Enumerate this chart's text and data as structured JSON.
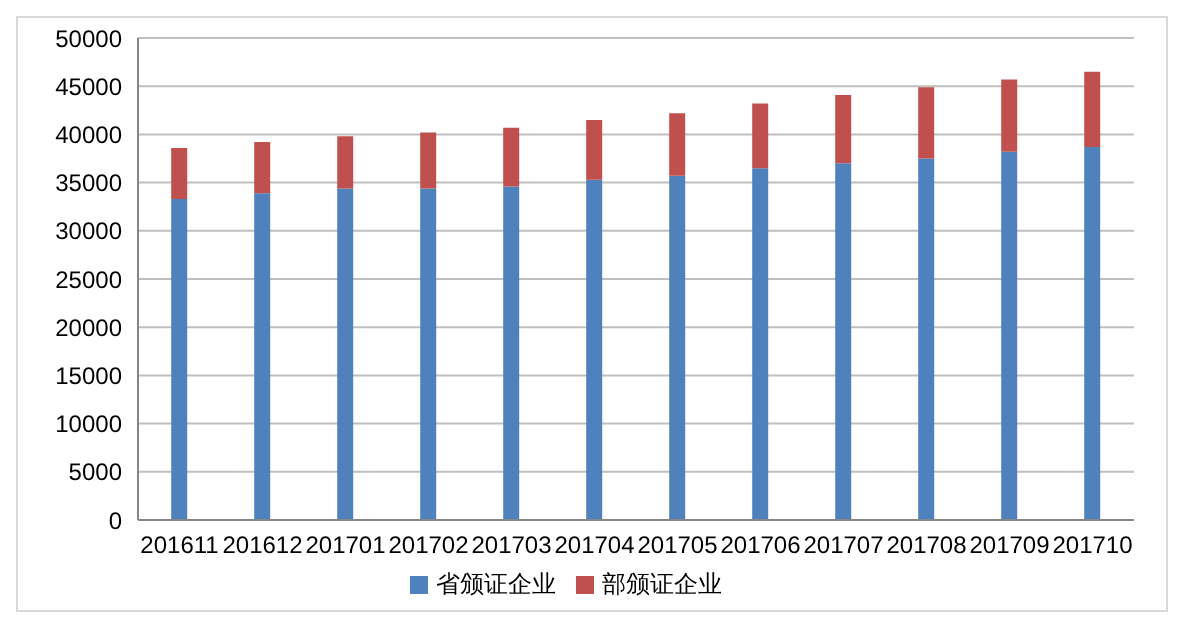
{
  "chart_data": {
    "type": "bar",
    "stacked": true,
    "categories": [
      "201611",
      "201612",
      "201701",
      "201702",
      "201703",
      "201704",
      "201705",
      "201706",
      "201707",
      "201708",
      "201709",
      "201710"
    ],
    "series": [
      {
        "name": "省颁证企业",
        "color": "#4f81bd",
        "values": [
          33300,
          33900,
          34400,
          34400,
          34600,
          35300,
          35700,
          36500,
          37000,
          37500,
          38200,
          38700
        ]
      },
      {
        "name": "部颁证企业",
        "color": "#c0504d",
        "values": [
          5300,
          5300,
          5400,
          5800,
          6100,
          6200,
          6500,
          6700,
          7100,
          7400,
          7500,
          7800
        ]
      }
    ],
    "ylim": [
      0,
      50000
    ],
    "yticks": [
      0,
      5000,
      10000,
      15000,
      20000,
      25000,
      30000,
      35000,
      40000,
      45000,
      50000
    ],
    "grid": "y",
    "legend": "bottom"
  }
}
